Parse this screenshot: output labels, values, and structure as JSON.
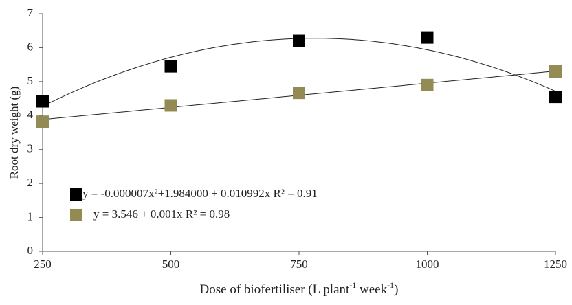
{
  "chart_data": {
    "type": "scatter",
    "ylabel": "Root dry weight (g)",
    "xlabel_parts": [
      "Dose of biofertiliser (L plant",
      "-1",
      " week",
      "-1",
      ")"
    ],
    "x": [
      250,
      500,
      750,
      1000,
      1250
    ],
    "series": [
      {
        "name": "y = -0.000007x²+1.984000 + 0.010992x R² = 0.91",
        "color": "#000000",
        "trend": "quadratic",
        "values": [
          4.42,
          5.45,
          6.2,
          6.3,
          4.55
        ]
      },
      {
        "name": "y = 3.546 + 0.001x R² = 0.98",
        "color": "#948a54",
        "trend": "linear",
        "values": [
          3.82,
          4.3,
          4.67,
          4.9,
          5.3
        ]
      }
    ],
    "xlim": [
      250,
      1250
    ],
    "xticks": [
      250,
      500,
      750,
      1000,
      1250
    ],
    "ylim": [
      0,
      7
    ],
    "yticks": [
      0,
      1,
      2,
      3,
      4,
      5,
      6,
      7
    ],
    "grid": false,
    "legend": "lower left"
  }
}
